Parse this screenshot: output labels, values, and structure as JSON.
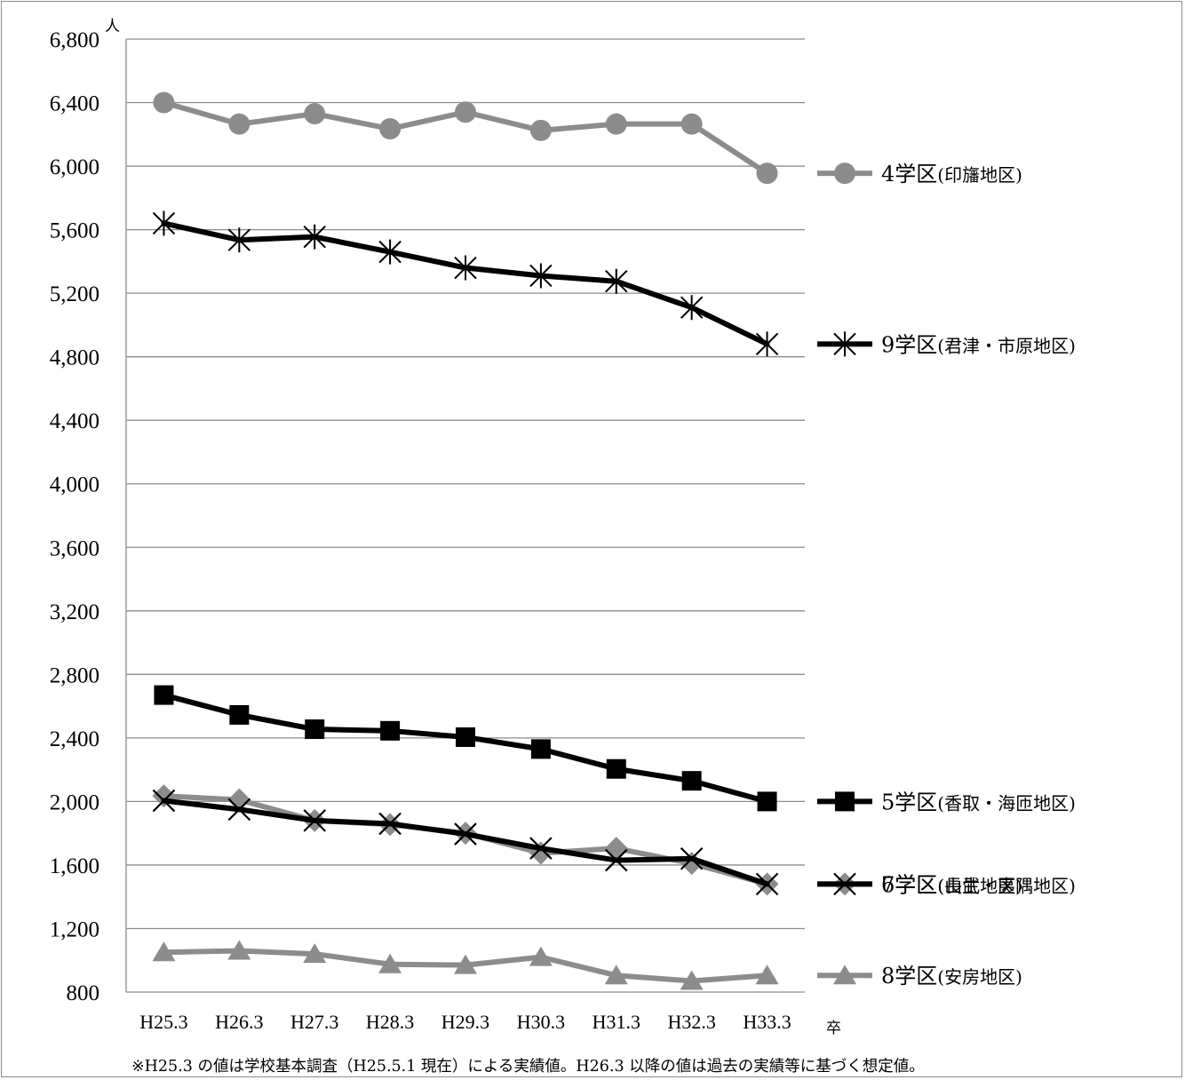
{
  "chart_data": {
    "type": "line",
    "y_unit": "人",
    "x_unit": "卒",
    "ylim": [
      800,
      6800
    ],
    "yticks": [
      800,
      1200,
      1600,
      2000,
      2400,
      2800,
      3200,
      3600,
      4000,
      4400,
      4800,
      5200,
      5600,
      6000,
      6400,
      6800
    ],
    "ytick_labels": [
      "800",
      "1,200",
      "1,600",
      "2,000",
      "2,400",
      "2,800",
      "3,200",
      "3,600",
      "4,000",
      "4,400",
      "4,800",
      "5,200",
      "5,600",
      "6,000",
      "6,400",
      "6,800"
    ],
    "grid": true,
    "categories": [
      "H25.3",
      "H26.3",
      "H27.3",
      "H28.3",
      "H29.3",
      "H30.3",
      "H31.3",
      "H32.3",
      "H33.3"
    ],
    "legend_position": "right",
    "series": [
      {
        "name": "4学区",
        "area": "(印旛地区)",
        "color": "#8c8c8c",
        "marker": "circle",
        "values": [
          6400,
          6265,
          6330,
          6235,
          6340,
          6225,
          6265,
          6265,
          5955
        ]
      },
      {
        "name": "9学区",
        "area": "(君津・市原地区)",
        "color": "#000000",
        "marker": "asterisk",
        "values": [
          5640,
          5535,
          5555,
          5460,
          5360,
          5310,
          5275,
          5110,
          4880
        ]
      },
      {
        "name": "5学区",
        "area": "(香取・海匝地区)",
        "color": "#000000",
        "marker": "square",
        "values": [
          2670,
          2545,
          2455,
          2445,
          2405,
          2330,
          2205,
          2130,
          2000
        ]
      },
      {
        "name": "6学区",
        "area": "(山武地区)",
        "color": "#8c8c8c",
        "marker": "diamond",
        "values": [
          2035,
          2010,
          1880,
          1855,
          1800,
          1675,
          1705,
          1610,
          1480
        ]
      },
      {
        "name": "7学区",
        "area": "(長生・夷隅地区)",
        "color": "#000000",
        "marker": "x",
        "values": [
          2005,
          1950,
          1880,
          1860,
          1795,
          1705,
          1630,
          1640,
          1480
        ]
      },
      {
        "name": "8学区",
        "area": "(安房地区)",
        "color": "#8c8c8c",
        "marker": "triangle",
        "values": [
          1050,
          1060,
          1040,
          975,
          970,
          1020,
          905,
          870,
          905
        ]
      }
    ],
    "footnote": "※H25.3 の値は学校基本調査（H25.5.1 現在）による実績値。H26.3 以降の値は過去の実績等に基づく想定値。"
  }
}
